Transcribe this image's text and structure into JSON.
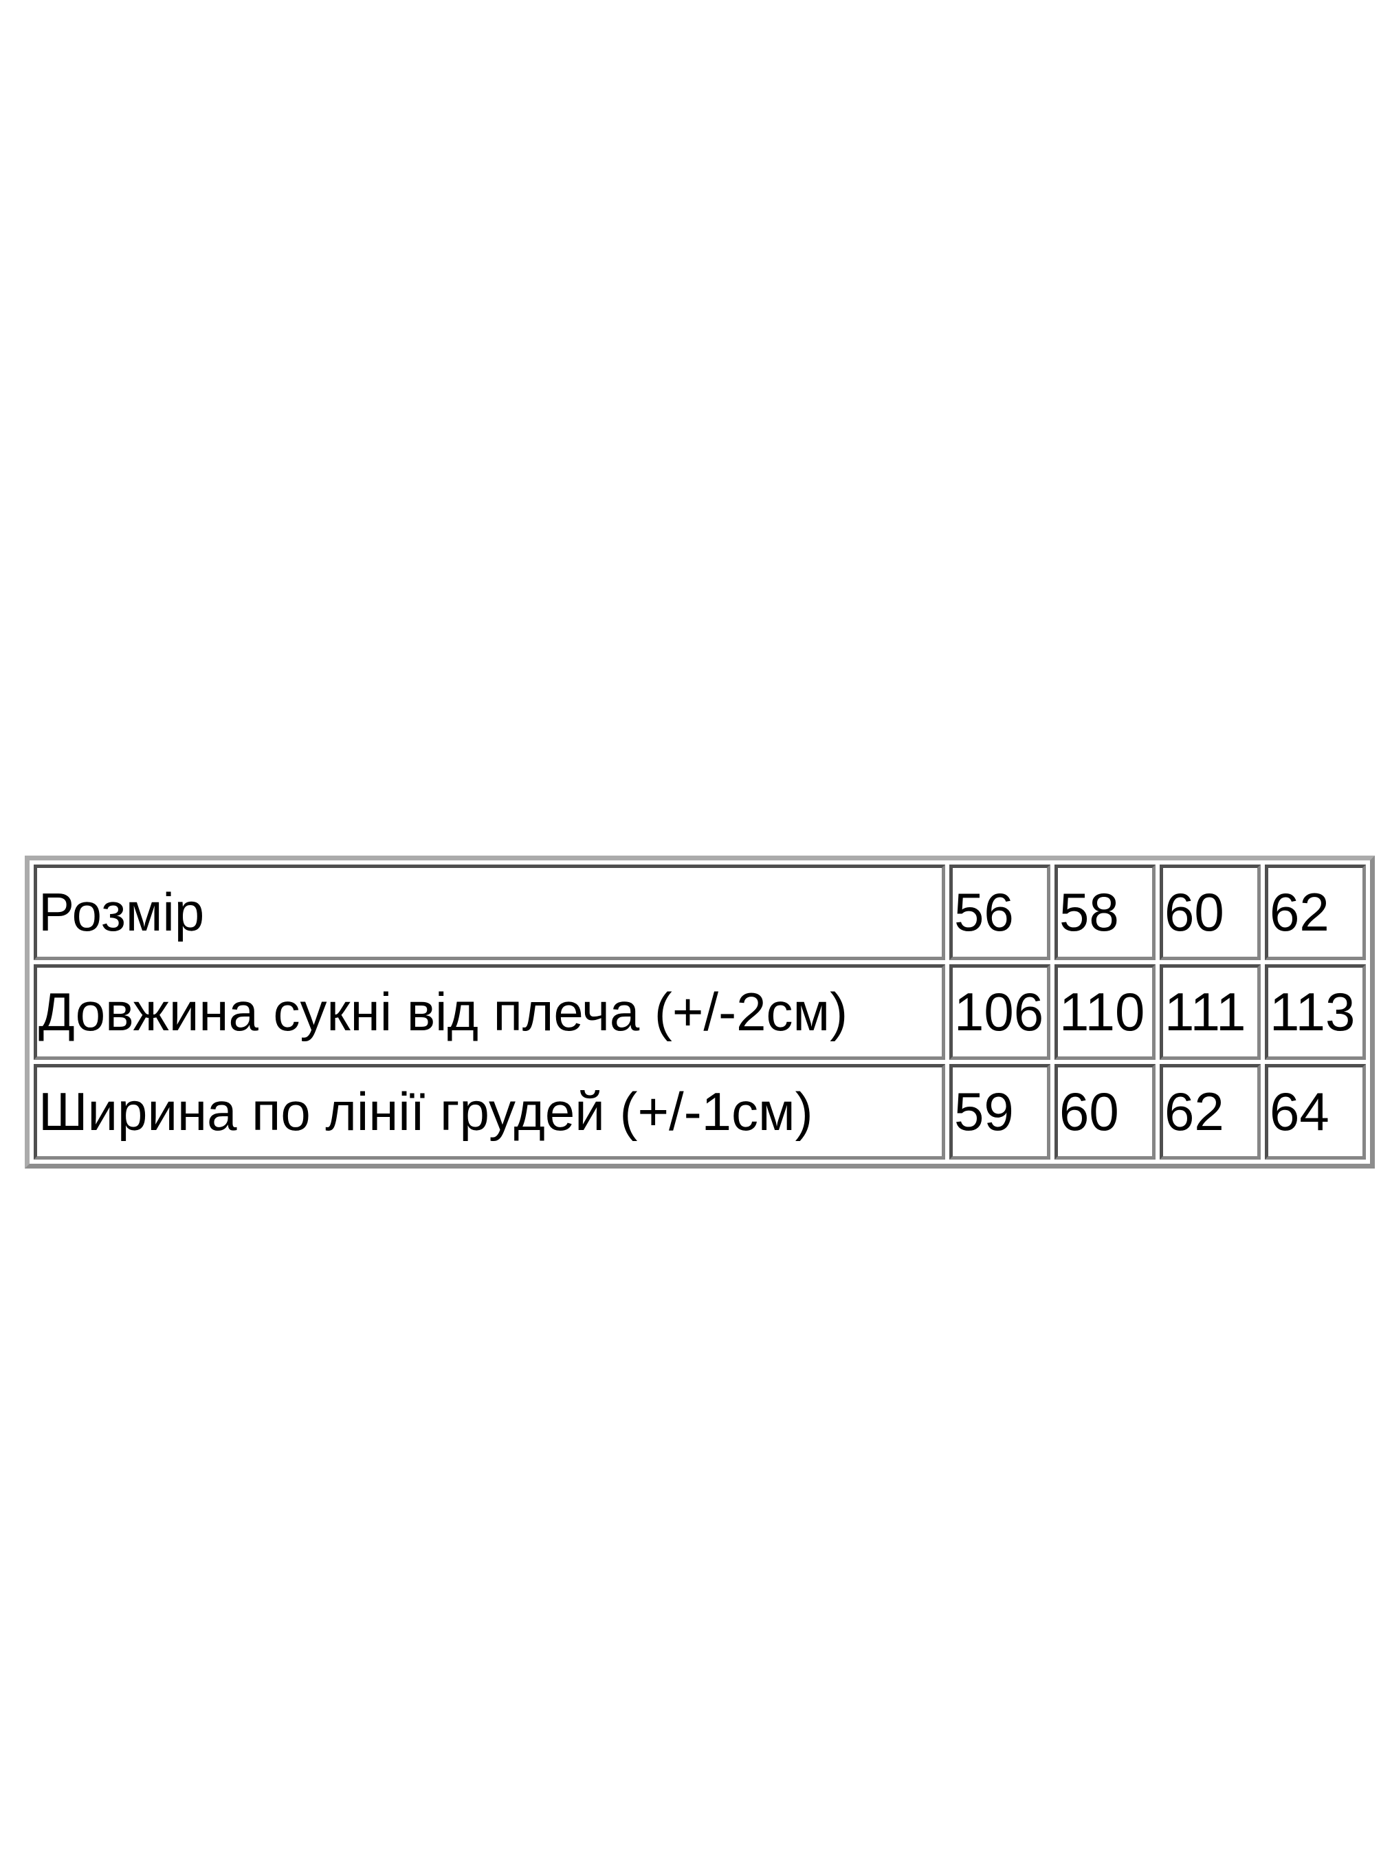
{
  "page": {
    "background_color": "#ffffff",
    "text_color": "#000000"
  },
  "size_chart": {
    "rows": [
      {
        "label": "Розмір",
        "values": [
          "56",
          "58",
          "60",
          "62"
        ]
      },
      {
        "label": "Довжина сукні від плеча (+/-2см)",
        "values": [
          "106",
          "110",
          "111",
          "113"
        ]
      },
      {
        "label": "Ширина по лінії грудей (+/-1см)",
        "values": [
          "59",
          "60",
          "62",
          "64"
        ]
      }
    ],
    "colors": {
      "cell_border_dark": "#4f4f4f",
      "cell_border_light": "#868686",
      "table_border_light": "#ababab",
      "table_border_dark": "#8d8d8d"
    }
  }
}
